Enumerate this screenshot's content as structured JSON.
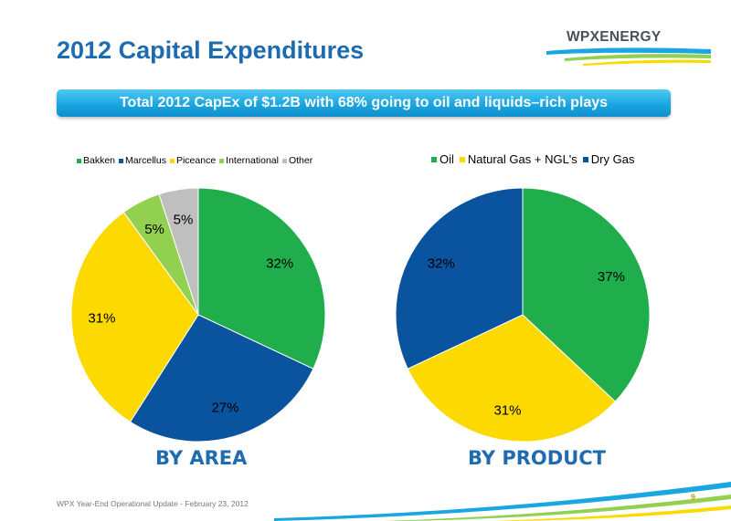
{
  "header": {
    "title": "2012 Capital Expenditures",
    "logo_text": "WPXENERGY"
  },
  "banner": {
    "text": "Total 2012 CapEx of $1.2B with 68% going to oil and liquids–rich plays"
  },
  "chart_data": [
    {
      "type": "pie",
      "title": "",
      "caption": "BY AREA",
      "legend_position": "top",
      "slices": [
        {
          "name": "Bakken",
          "value": 32,
          "label": "32%",
          "color": "#1fae4b"
        },
        {
          "name": "Marcellus",
          "value": 27,
          "label": "27%",
          "color": "#0a539e"
        },
        {
          "name": "Piceance",
          "value": 31,
          "label": "31%",
          "color": "#fcd900"
        },
        {
          "name": "International",
          "value": 5,
          "label": "5%",
          "color": "#92d050"
        },
        {
          "name": "Other",
          "value": 5,
          "label": "5%",
          "color": "#bfbfbf"
        }
      ]
    },
    {
      "type": "pie",
      "title": "",
      "caption": "BY PRODUCT",
      "legend_position": "top",
      "slices": [
        {
          "name": "Oil",
          "value": 37,
          "label": "37%",
          "color": "#1fae4b"
        },
        {
          "name": "Natural Gas + NGL's",
          "value": 31,
          "label": "31%",
          "color": "#fcd900"
        },
        {
          "name": "Dry Gas",
          "value": 32,
          "label": "32%",
          "color": "#0a539e"
        }
      ]
    }
  ],
  "footer": {
    "text": "WPX Year-End Operational Update - February 23, 2012",
    "page_number": "9"
  },
  "colors": {
    "title_blue": "#1f6bb0",
    "banner_blue": "#1aa6e0",
    "page_number_gold": "#c8a000"
  }
}
